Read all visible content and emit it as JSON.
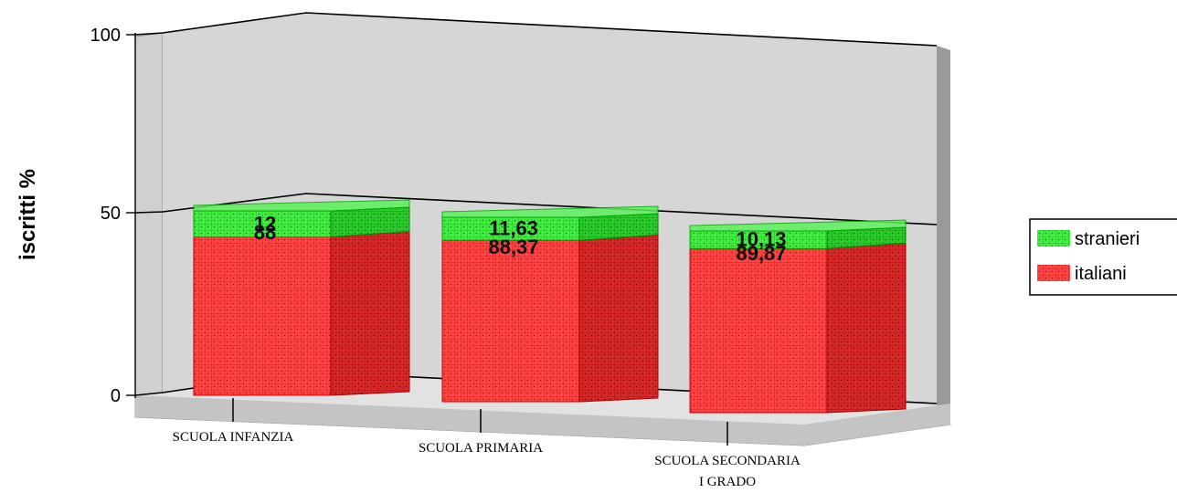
{
  "chart_data": {
    "type": "bar",
    "stacked": true,
    "three_d": true,
    "ylabel": "iscritti %",
    "ylim": [
      0,
      100
    ],
    "yticks": [
      "0",
      "50",
      "100"
    ],
    "categories": [
      "SCUOLA INFANZIA",
      "SCUOLA PRIMARIA",
      "SCUOLA SECONDARIA I GRADO"
    ],
    "category_lines": [
      [
        "SCUOLA INFANZIA"
      ],
      [
        "SCUOLA PRIMARIA"
      ],
      [
        "SCUOLA SECONDARIA",
        "I GRADO"
      ]
    ],
    "series": [
      {
        "name": "italiani",
        "values": [
          88,
          88.37,
          89.87
        ],
        "labels": [
          "88",
          "88,37",
          "89,87"
        ],
        "color": "#ff3b3b"
      },
      {
        "name": "stranieri",
        "values": [
          12,
          11.63,
          10.13
        ],
        "labels": [
          "12",
          "11,63",
          "10,13"
        ],
        "color": "#3ee63e"
      }
    ],
    "legend": {
      "placement": "right",
      "entries": [
        "stranieri",
        "italiani"
      ]
    },
    "grid": true
  }
}
